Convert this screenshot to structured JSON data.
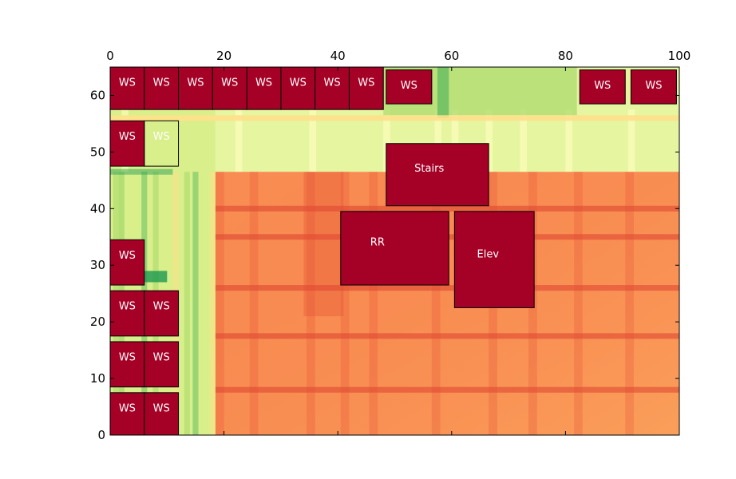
{
  "chart_data": {
    "type": "heatmap",
    "title": "",
    "xlabel": "",
    "ylabel": "",
    "xlim": [
      0,
      100
    ],
    "ylim": [
      0,
      65
    ],
    "xticks": [
      0,
      20,
      40,
      60,
      80,
      100
    ],
    "yticks": [
      0,
      10,
      20,
      30,
      40,
      50,
      60
    ],
    "x_axis_position": "top",
    "grid": false,
    "legend": "none",
    "colormap": "RdYlGn reversed",
    "room_color": "#a50026",
    "background_regions": [
      {
        "x0": 0,
        "y0": 0,
        "x1": 18.5,
        "y1": 65,
        "color": "#d9ef8b",
        "shade": "light green"
      },
      {
        "x0": 18.5,
        "y0": 46.5,
        "x1": 100,
        "y1": 65,
        "color": "#e6f5a0",
        "shade": "yellow-green"
      },
      {
        "x0": 18.5,
        "y0": 0,
        "x1": 100,
        "y1": 46.5,
        "color": "#f88d52",
        "shade": "orange"
      }
    ],
    "rooms": [
      {
        "label": "WS",
        "x0": 0,
        "y0": 57.5,
        "x1": 6,
        "y1": 65
      },
      {
        "label": "WS",
        "x0": 6,
        "y0": 57.5,
        "x1": 12,
        "y1": 65
      },
      {
        "label": "WS",
        "x0": 12,
        "y0": 57.5,
        "x1": 18,
        "y1": 65
      },
      {
        "label": "WS",
        "x0": 18,
        "y0": 57.5,
        "x1": 24,
        "y1": 65
      },
      {
        "label": "WS",
        "x0": 24,
        "y0": 57.5,
        "x1": 30,
        "y1": 65
      },
      {
        "label": "WS",
        "x0": 30,
        "y0": 57.5,
        "x1": 36,
        "y1": 65
      },
      {
        "label": "WS",
        "x0": 36,
        "y0": 57.5,
        "x1": 42,
        "y1": 65
      },
      {
        "label": "WS",
        "x0": 42,
        "y0": 57.5,
        "x1": 48,
        "y1": 65
      },
      {
        "label": "WS",
        "x0": 48.5,
        "y0": 58.5,
        "x1": 56.5,
        "y1": 64.5
      },
      {
        "label": "WS",
        "x0": 82.5,
        "y0": 58.5,
        "x1": 90.5,
        "y1": 64.5
      },
      {
        "label": "WS",
        "x0": 91.5,
        "y0": 58.5,
        "x1": 99.5,
        "y1": 64.5
      },
      {
        "label": "WS",
        "x0": 0,
        "y0": 47.5,
        "x1": 6,
        "y1": 55.5
      },
      {
        "label": "WS",
        "x0": 6,
        "y0": 47.5,
        "x1": 12,
        "y1": 55.5,
        "outline_only": true
      },
      {
        "label": "WS",
        "x0": 0,
        "y0": 26.5,
        "x1": 6,
        "y1": 34.5
      },
      {
        "label": "WS",
        "x0": 0,
        "y0": 17.5,
        "x1": 6,
        "y1": 25.5
      },
      {
        "label": "WS",
        "x0": 6,
        "y0": 17.5,
        "x1": 12,
        "y1": 25.5
      },
      {
        "label": "WS",
        "x0": 0,
        "y0": 8.5,
        "x1": 6,
        "y1": 16.5
      },
      {
        "label": "WS",
        "x0": 6,
        "y0": 8.5,
        "x1": 12,
        "y1": 16.5
      },
      {
        "label": "WS",
        "x0": 0,
        "y0": 0,
        "x1": 6,
        "y1": 7.5
      },
      {
        "label": "WS",
        "x0": 6,
        "y0": 0,
        "x1": 12,
        "y1": 7.5
      },
      {
        "label": "Stairs",
        "x0": 48.5,
        "y0": 40.5,
        "x1": 66.5,
        "y1": 51.5
      },
      {
        "label": "RR",
        "x0": 40.5,
        "y0": 26.5,
        "x1": 59.5,
        "y1": 39.5
      },
      {
        "label": "Elev",
        "x0": 60.5,
        "y0": 22.5,
        "x1": 74.5,
        "y1": 39.5
      }
    ]
  }
}
